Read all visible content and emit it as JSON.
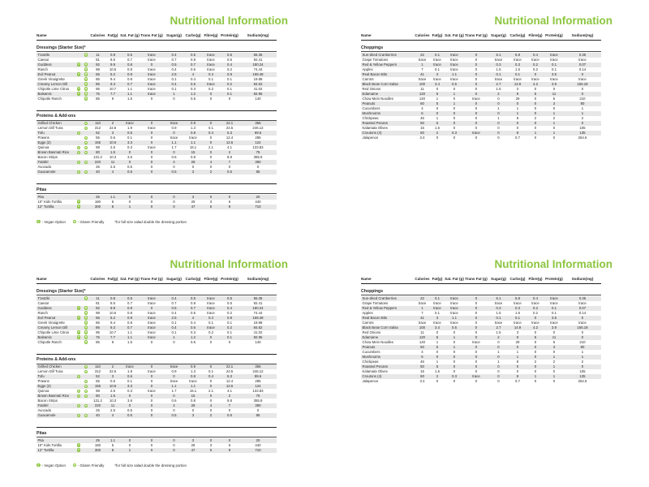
{
  "page_title": "Nutritional Information",
  "accent_color": "#8CC63F",
  "stripe_color": "#e7e7e7",
  "columns": [
    "Name",
    "Calories",
    "Fat(g)",
    "Sat. Fat (g)",
    "Trans Fat (g)",
    "Sugar(g)",
    "Carbs(g)",
    "Fibre(g)",
    "Protein(g)",
    "Sodium(mg)"
  ],
  "legend": {
    "vegan_symbol": "V",
    "vegan_label": "- Vegan Option",
    "gluten_symbol": "G",
    "gluten_label": "- Gluten Friendly",
    "note": "*for full size salad double the dressing portion"
  },
  "pages": {
    "left": {
      "sections": [
        {
          "title": "Dressings (Starter Size)*",
          "rows": [
            {
              "name": "Tzatziki",
              "vegan": false,
              "gluten": true,
              "values": [
                "11",
                "0.8",
                "0.5",
                "trace",
                "0.4",
                "0.5",
                "trace",
                "0.5",
                "55.35"
              ]
            },
            {
              "name": "Caesar",
              "vegan": false,
              "gluten": false,
              "values": [
                "81",
                "8.5",
                "0.7",
                "trace",
                "0.7",
                "0.8",
                "trace",
                "0.5",
                "92.41"
              ]
            },
            {
              "name": "Goddess",
              "vegan": true,
              "gluten": true,
              "values": [
                "92",
                "9.9",
                "0.8",
                "0",
                "0.5",
                "0.7",
                "trace",
                "0.4",
                "180.24"
              ]
            },
            {
              "name": "Ranch",
              "vegan": false,
              "gluten": true,
              "values": [
                "98",
                "10.6",
                "0.8",
                "trace",
                "0.4",
                "0.5",
                "trace",
                "0.2",
                "74.44"
              ]
            },
            {
              "name": "Evil Peanut",
              "vegan": true,
              "gluten": true,
              "values": [
                "66",
                "5.2",
                "0.9",
                "trace",
                "2.5",
                "4",
                "0.4",
                "0.9",
                "168.48"
              ]
            },
            {
              "name": "Greek Vinaigrette",
              "vegan": false,
              "gluten": true,
              "values": [
                "86",
                "9.4",
                "0.8",
                "trace",
                "0.1",
                "0.4",
                "0.1",
                "0.1",
                "19.88"
              ]
            },
            {
              "name": "Creamy Lemon Dill",
              "vegan": false,
              "gluten": true,
              "values": [
                "86",
                "9.3",
                "0.7",
                "trace",
                "0.4",
                "0.6",
                "trace",
                "0.2",
                "84.62"
              ]
            },
            {
              "name": "Chipotle Lime Citrus",
              "vegan": true,
              "gluten": true,
              "values": [
                "95",
                "10.7",
                "1.1",
                "trace",
                "0.1",
                "0.3",
                "0.2",
                "0.1",
                "41.02"
              ]
            },
            {
              "name": "Balsamic",
              "vegan": true,
              "gluten": true,
              "values": [
                "76",
                "7.7",
                "1.1",
                "trace",
                "1",
                "1.2",
                "0",
                "0.1",
                "82.95"
              ]
            },
            {
              "name": "Chipotle Ranch",
              "vegan": false,
              "gluten": true,
              "values": [
                "85",
                "9",
                "1.5",
                "0",
                "0",
                "0.5",
                "0",
                "0",
                "140"
              ]
            }
          ]
        },
        {
          "title": "Proteins & Add-ons",
          "rows": [
            {
              "name": "Grilled Chicken",
              "vegan": false,
              "gluten": true,
              "values": [
                "110",
                "2",
                "trace",
                "0",
                "trace",
                "0.9",
                "0",
                "22.1",
                "356"
              ]
            },
            {
              "name": "Lemon Dill Tuna",
              "vegan": false,
              "gluten": true,
              "values": [
                "312",
                "22.6",
                "1.9",
                "trace",
                "0.9",
                "1.3",
                "0.1",
                "24.5",
                "246.12"
              ]
            },
            {
              "name": "Tofu",
              "vegan": true,
              "gluten": false,
              "values": [
                "52",
                "3",
                "0.6",
                "0",
                "0",
                "0.8",
                "0.4",
                "5.3",
                "89.6"
              ]
            },
            {
              "name": "Prawns",
              "vegan": false,
              "gluten": true,
              "values": [
                "55",
                "0.6",
                "0.1",
                "0",
                "trace",
                "trace",
                "0",
                "12.4",
                "285"
              ]
            },
            {
              "name": "Eggs (2)",
              "vegan": false,
              "gluten": true,
              "values": [
                "155",
                "10.6",
                "3.3",
                "0",
                "1.1",
                "1.1",
                "0",
                "12.6",
                "124"
              ]
            },
            {
              "name": "Quinoa",
              "vegan": true,
              "gluten": true,
              "values": [
                "98",
                "2.6",
                "0.3",
                "trace",
                "1.7",
                "15.1",
                "2.1",
                "4.1",
                "133.83"
              ]
            },
            {
              "name": "Brown Basmati Rice",
              "vegan": true,
              "gluten": true,
              "values": [
                "80",
                "1.5",
                "0",
                "0",
                "0",
                "15",
                "0",
                "2",
                "75"
              ]
            },
            {
              "name": "Bacon Strips",
              "vegan": false,
              "gluten": false,
              "values": [
                "131.2",
                "10.3",
                "3.6",
                "0",
                "0.6",
                "0.8",
                "0",
                "8.8",
                "355.8"
              ]
            },
            {
              "name": "Falafel",
              "vegan": true,
              "gluten": true,
              "values": [
                "220",
                "11",
                "0",
                "0",
                "4",
                "28",
                "4",
                "7",
                "390"
              ]
            },
            {
              "name": "Avocado",
              "vegan": false,
              "gluten": false,
              "values": [
                "25",
                "2.5",
                "0.5",
                "0",
                "0",
                "0",
                "0",
                "0",
                "0"
              ]
            },
            {
              "name": "Guacamole",
              "vegan": true,
              "gluten": true,
              "values": [
                "40",
                "4",
                "0.5",
                "0",
                "0.5",
                "3",
                "2",
                "0.5",
                "85"
              ]
            }
          ]
        },
        {
          "title": "Pitas",
          "rows": [
            {
              "name": "Pita",
              "vegan": false,
              "gluten": false,
              "values": [
                "25",
                "1.1",
                "0",
                "0",
                "0",
                "3",
                "0",
                "0",
                "20"
              ]
            },
            {
              "name": "10\" Kids Tortilla",
              "vegan": true,
              "gluten": false,
              "values": [
                "180",
                "5",
                "0",
                "0",
                "0",
                "29",
                "3",
                "6",
                "440"
              ]
            },
            {
              "name": "12\" Tortilla",
              "vegan": true,
              "gluten": false,
              "values": [
                "300",
                "8",
                "1",
                "0",
                "0",
                "47",
                "5",
                "9",
                "710"
              ]
            }
          ]
        }
      ],
      "show_legend": true
    },
    "right": {
      "sections": [
        {
          "title": "Choppings",
          "rows": [
            {
              "name": "Sun-dried Cranberries",
              "vegan": false,
              "gluten": false,
              "values": [
                "22",
                "0.1",
                "trace",
                "0",
                "5.1",
                "5.8",
                "0.4",
                "trace",
                "0.35"
              ]
            },
            {
              "name": "Grape Tomatoes",
              "vegan": false,
              "gluten": false,
              "values": [
                "trace",
                "trace",
                "trace",
                "0",
                "trace",
                "trace",
                "trace",
                "trace",
                "trace"
              ]
            },
            {
              "name": "Red & Yellow Peppers",
              "vegan": false,
              "gluten": false,
              "values": [
                "1",
                "trace",
                "trace",
                "0",
                "0.3",
                "0.3",
                "0.2",
                "0.1",
                "0.07"
              ]
            },
            {
              "name": "Apples",
              "vegan": false,
              "gluten": false,
              "values": [
                "7",
                "0.1",
                "trace",
                "0",
                "1.5",
                "1.5",
                "0.2",
                "0.1",
                "0.14"
              ]
            },
            {
              "name": "Real Bacon Bits",
              "vegan": false,
              "gluten": false,
              "values": [
                "41",
                "3",
                "1.1",
                "0",
                "0.1",
                "0.1",
                "0",
                "3.5",
                "0"
              ]
            },
            {
              "name": "Carrots",
              "vegan": false,
              "gluten": false,
              "values": [
                "trace",
                "trace",
                "trace",
                "0",
                "trace",
                "trace",
                "trace",
                "trace",
                "trace"
              ]
            },
            {
              "name": "Black Bean Corn Salsa",
              "vegan": false,
              "gluten": false,
              "values": [
                "100",
                "3.4",
                "0.5",
                "0",
                "2.7",
                "14.9",
                "4.2",
                "3.9",
                "165.18"
              ]
            },
            {
              "name": "Red Onions",
              "vegan": false,
              "gluten": false,
              "values": [
                "11",
                "0",
                "0",
                "0",
                "1.5",
                "3",
                "0",
                "0",
                "0"
              ]
            },
            {
              "name": "Edamame",
              "vegan": false,
              "gluten": false,
              "values": [
                "120",
                "5",
                "1",
                "0",
                "2",
                "9",
                "5",
                "11",
                "0"
              ]
            },
            {
              "name": "Chow Mein Noodles",
              "vegan": false,
              "gluten": false,
              "values": [
                "140",
                "1",
                "0",
                "trace",
                "0",
                "29",
                "0",
                "5",
                "210"
              ]
            },
            {
              "name": "Peanuts",
              "vegan": false,
              "gluten": false,
              "values": [
                "60",
                "5",
                "1",
                "0",
                "0",
                "0",
                "0",
                "3",
                "80"
              ]
            },
            {
              "name": "Cucumbers",
              "vegan": false,
              "gluten": false,
              "values": [
                "4",
                "0",
                "0",
                "0",
                "1",
                "1",
                "0",
                "0",
                "1"
              ]
            },
            {
              "name": "Mushrooms",
              "vegan": false,
              "gluten": false,
              "values": [
                "6",
                "0",
                "0",
                "0",
                "0",
                "1",
                "0",
                "1",
                "1"
              ]
            },
            {
              "name": "Chickpeas",
              "vegan": false,
              "gluten": false,
              "values": [
                "46",
                "1",
                "0",
                "0",
                "1",
                "8",
                "2",
                "2",
                "2"
              ]
            },
            {
              "name": "Roasted Pecans",
              "vegan": false,
              "gluten": false,
              "values": [
                "50",
                "5",
                "0",
                "0",
                "0",
                "0",
                "0",
                "1",
                "0"
              ]
            },
            {
              "name": "Kalamata Olives",
              "vegan": false,
              "gluten": false,
              "values": [
                "15",
                "1.5",
                "0",
                "0",
                "0",
                "0",
                "0",
                "0",
                "105"
              ]
            },
            {
              "name": "Croutons (4)",
              "vegan": false,
              "gluten": false,
              "values": [
                "60",
                "2",
                "0.3",
                "trace",
                "0",
                "8",
                "1",
                "1",
                "135"
              ]
            },
            {
              "name": "Jalapenos",
              "vegan": false,
              "gluten": false,
              "values": [
                "3.4",
                "0",
                "0",
                "0",
                "0",
                "0.7",
                "0",
                "0",
                "254.6"
              ]
            }
          ]
        }
      ],
      "show_legend": false
    }
  }
}
